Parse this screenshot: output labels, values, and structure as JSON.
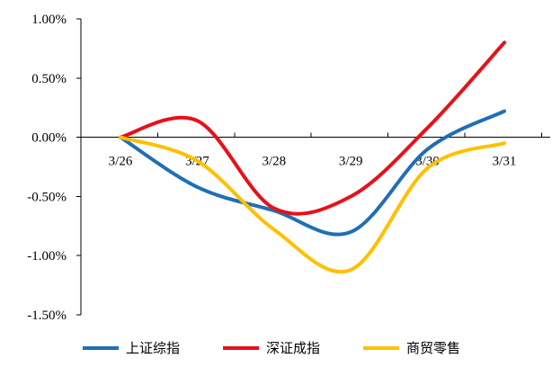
{
  "chart_data": {
    "type": "line",
    "title": "",
    "xlabel": "",
    "ylabel": "",
    "categories": [
      "3/26",
      "3/27",
      "3/28",
      "3/29",
      "3/30",
      "3/31"
    ],
    "y_tick_labels": [
      "1.00%",
      "0.50%",
      "0.00%",
      "-0.50%",
      "-1.00%",
      "-1.50%"
    ],
    "y_ticks": [
      1.0,
      0.5,
      0.0,
      -0.5,
      -1.0,
      -1.5
    ],
    "ylim": [
      -1.5,
      1.0
    ],
    "grid": false,
    "legend_position": "bottom",
    "smooth": true,
    "series": [
      {
        "name": "上证综指",
        "color": "#1F6FB4",
        "values": [
          0.0,
          -0.42,
          -0.62,
          -0.8,
          -0.1,
          0.22
        ]
      },
      {
        "name": "深证成指",
        "color": "#E8101A",
        "values": [
          0.0,
          0.14,
          -0.6,
          -0.5,
          0.08,
          0.8
        ]
      },
      {
        "name": "商贸零售",
        "color": "#FFC000",
        "values": [
          0.0,
          -0.2,
          -0.78,
          -1.12,
          -0.26,
          -0.05
        ]
      }
    ]
  }
}
